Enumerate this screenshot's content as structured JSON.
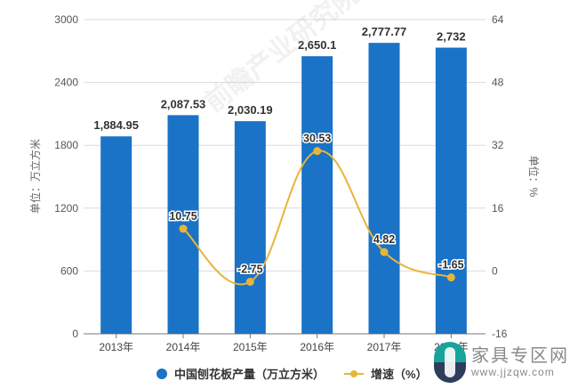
{
  "chart_data": {
    "type": "bar+line",
    "title": "",
    "categories": [
      "2013年",
      "2014年",
      "2015年",
      "2016年",
      "2017年",
      "2018年"
    ],
    "series": [
      {
        "name": "中国刨花板产量（万立方米）",
        "type": "bar",
        "axis": "left",
        "color": "#1a73c6",
        "values": [
          1884.95,
          2087.53,
          2030.19,
          2650.1,
          2777.77,
          2732
        ],
        "labels": [
          "1,884.95",
          "2,087.53",
          "2,030.19",
          "2,650.1",
          "2,777.77",
          "2,732"
        ]
      },
      {
        "name": "增速（%）",
        "type": "line",
        "axis": "right",
        "color": "#e8b43a",
        "values": [
          null,
          10.75,
          -2.75,
          30.53,
          4.82,
          -1.65
        ],
        "labels": [
          "",
          "10.75",
          "-2.75",
          "30.53",
          "4.82",
          "-1.65"
        ]
      }
    ],
    "ylabel_left": "单位：万立方米",
    "ylabel_right": "单位：%",
    "ylim_left": [
      0,
      3000
    ],
    "ylim_right": [
      -16,
      64
    ],
    "yticks_left": [
      "0",
      "600",
      "1200",
      "1800",
      "2400",
      "3000"
    ],
    "yticks_right": [
      "-16",
      "0",
      "16",
      "32",
      "48",
      "64"
    ],
    "grid": true,
    "legend_position": "bottom"
  },
  "legend": {
    "bar_label": "中国刨花板产量（万立方米）",
    "line_label": "增速（%）"
  },
  "watermark": {
    "background_text": "前瞻产业研究院",
    "site_name": "家具专区网",
    "site_url": "www.jjzqw.com"
  }
}
